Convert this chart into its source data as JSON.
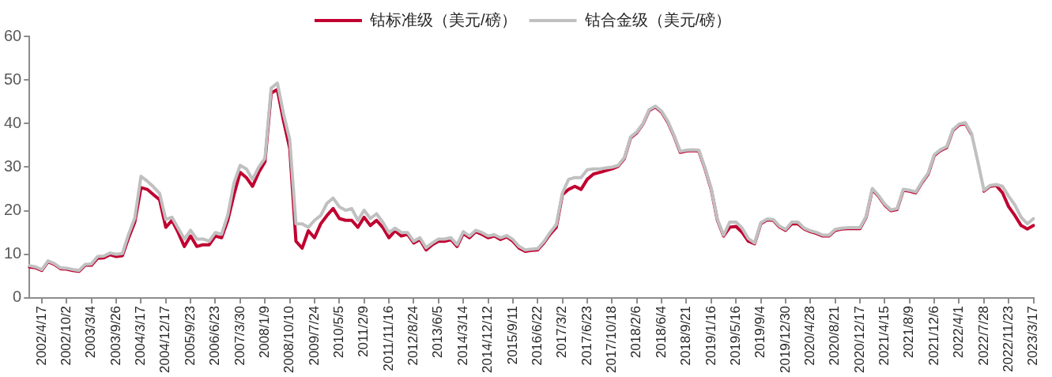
{
  "chart_data": {
    "type": "line",
    "categories": [
      null,
      null,
      "2002/4/17",
      null,
      null,
      null,
      "2002/10/2",
      null,
      null,
      null,
      "2003/3/4",
      null,
      null,
      null,
      "2003/9/26",
      null,
      null,
      null,
      "2004/3/17",
      null,
      null,
      null,
      "2004/12/17",
      null,
      null,
      null,
      "2005/9/23",
      null,
      null,
      null,
      "2006/6/23",
      null,
      null,
      null,
      "2007/3/30",
      null,
      null,
      null,
      "2008/1/9",
      null,
      null,
      null,
      "2008/10/10",
      null,
      null,
      null,
      "2009/7/24",
      null,
      null,
      null,
      "2010/5/5",
      null,
      null,
      null,
      "2011/2/9",
      null,
      null,
      null,
      "2011/11/16",
      null,
      null,
      null,
      "2012/8/24",
      null,
      null,
      null,
      "2013/6/5",
      null,
      null,
      null,
      "2014/3/14",
      null,
      null,
      null,
      "2014/12/12",
      null,
      null,
      null,
      "2015/9/11",
      null,
      null,
      null,
      "2016/6/22",
      null,
      null,
      null,
      "2017/3/2",
      null,
      null,
      null,
      "2017/6/23",
      null,
      null,
      null,
      "2017/10/18",
      null,
      null,
      null,
      "2018/2/6",
      null,
      null,
      null,
      "2018/6/4",
      null,
      null,
      null,
      "2018/9/21",
      null,
      null,
      null,
      "2019/1/16",
      null,
      null,
      null,
      "2019/5/16",
      null,
      null,
      null,
      "2019/9/4",
      null,
      null,
      null,
      "2019/12/30",
      null,
      null,
      null,
      "2020/4/28",
      null,
      null,
      null,
      "2020/8/21",
      null,
      null,
      null,
      "2020/12/17",
      null,
      null,
      null,
      "2021/4/15",
      null,
      null,
      null,
      "2021/8/9",
      null,
      null,
      null,
      "2021/12/6",
      null,
      null,
      null,
      "2022/4/1",
      null,
      null,
      null,
      "2022/7/28",
      null,
      null,
      null,
      "2022/11/23",
      null,
      null,
      null,
      "2023/3/17"
    ],
    "series": [
      {
        "name": "钴标准级（美元/磅）",
        "color": "#c00030",
        "values": [
          7.1,
          6.9,
          6.3,
          8.3,
          7.7,
          6.7,
          6.6,
          6.3,
          6.1,
          7.5,
          7.5,
          9.1,
          9.2,
          9.9,
          9.5,
          9.7,
          13.8,
          17.4,
          25.3,
          24.9,
          23.7,
          22.5,
          16.2,
          17.8,
          15,
          11.8,
          14.2,
          11.8,
          12.2,
          12.2,
          14.2,
          13.8,
          17.8,
          23.7,
          28.8,
          27.6,
          25.6,
          28.8,
          31.2,
          47,
          47.8,
          40.6,
          34.3,
          13,
          11.4,
          15.4,
          13.8,
          17,
          18.9,
          20.5,
          18.2,
          17.8,
          17.8,
          16.2,
          18.5,
          16.6,
          17.8,
          16.2,
          13.8,
          15.4,
          14.2,
          14.6,
          12.6,
          13.4,
          11,
          12.2,
          13,
          13,
          13.4,
          11.8,
          14.8,
          13.8,
          15.2,
          14.6,
          13.8,
          14.2,
          13.4,
          14,
          13,
          11.4,
          10.7,
          10.9,
          11,
          12.6,
          14.6,
          16.2,
          23.7,
          24.9,
          25.6,
          24.9,
          27.2,
          28.4,
          28.8,
          29.2,
          29.6,
          30.2,
          32,
          36.7,
          37.9,
          39.9,
          43,
          43.8,
          42.6,
          40.3,
          37.1,
          33.4,
          33.7,
          33.8,
          33.7,
          29.6,
          24.9,
          17.8,
          14.2,
          16.2,
          16.4,
          15,
          13,
          12.4,
          17,
          17.9,
          17.8,
          16.3,
          15.5,
          17,
          17,
          15.8,
          15.2,
          14.8,
          14.2,
          14.2,
          15.5,
          15.8,
          15.9,
          15.9,
          15.9,
          18.5,
          24.9,
          23.3,
          21.3,
          20,
          20.3,
          24.7,
          24.5,
          24.1,
          26.4,
          28.4,
          32.7,
          33.8,
          34.5,
          38.4,
          39.7,
          40,
          37.5,
          null,
          24.5,
          25.6,
          25.8,
          24.1,
          20.9,
          18.9,
          16.6,
          15.8,
          16.6
        ]
      },
      {
        "name": "钴合金级（美元/磅）",
        "color": "#c0c0c0",
        "values": [
          7.4,
          7.1,
          6.5,
          8.5,
          7.9,
          6.9,
          6.8,
          6.5,
          6.3,
          7.7,
          7.8,
          9.5,
          9.6,
          10.3,
          10,
          10.2,
          14.6,
          18.3,
          27.9,
          26.8,
          25.5,
          24,
          18,
          18.5,
          16,
          13.5,
          15.5,
          13.5,
          13.5,
          13,
          15,
          14.6,
          19,
          26.4,
          30.4,
          29.6,
          27.2,
          30,
          32,
          48.1,
          49.3,
          42.2,
          36.3,
          17,
          17,
          16.2,
          17.8,
          18.9,
          21.7,
          22.9,
          20.9,
          20.1,
          20.5,
          17.8,
          20.1,
          18.2,
          19.3,
          17.4,
          15,
          16,
          15,
          15,
          13,
          13.8,
          11.5,
          12.6,
          13.5,
          13.5,
          13.8,
          12.2,
          15.2,
          14.2,
          15.5,
          15,
          14.2,
          14.5,
          13.8,
          14.3,
          13.4,
          11.8,
          11,
          11.2,
          11.3,
          12.9,
          15,
          16.8,
          24.1,
          27.2,
          27.6,
          27.6,
          29.4,
          29.6,
          29.6,
          29.8,
          30,
          30.4,
          32.2,
          36.9,
          38.1,
          40,
          43.2,
          44,
          42.8,
          40.5,
          37.3,
          33.6,
          33.9,
          34,
          33.9,
          29.8,
          25.1,
          18,
          14.4,
          17.4,
          17.4,
          16,
          13.6,
          12.6,
          17.2,
          18.1,
          18,
          16.5,
          15.7,
          17.4,
          17.4,
          16,
          15.4,
          15,
          14.4,
          14.4,
          15.7,
          16,
          16.1,
          16.1,
          16.1,
          18.7,
          25.1,
          23.5,
          21.5,
          20.2,
          20.5,
          24.9,
          24.7,
          24.3,
          26.6,
          28.6,
          32.9,
          34,
          34.7,
          38.6,
          39.9,
          40.2,
          37.7,
          31.4,
          24.7,
          25.8,
          26,
          25.6,
          23.3,
          21.3,
          18.5,
          17,
          18.2
        ]
      }
    ],
    "ylim": [
      0,
      60
    ],
    "yticks": [
      0,
      10,
      20,
      30,
      40,
      50,
      60
    ],
    "grid": false,
    "legend": "top",
    "marker": "none",
    "line_style": "solid"
  }
}
